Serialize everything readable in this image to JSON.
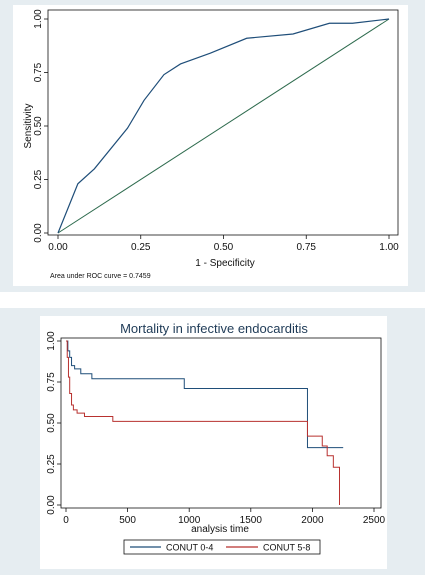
{
  "chart_data": [
    {
      "type": "line",
      "xlabel": "1 - Specificity",
      "ylabel": "Sensitivity",
      "xlim": [
        0,
        1
      ],
      "ylim": [
        0,
        1
      ],
      "xticks": [
        "0.00",
        "0.25",
        "0.50",
        "0.75",
        "1.00"
      ],
      "yticks": [
        "0.00",
        "0.25",
        "0.50",
        "0.75",
        "1.00"
      ],
      "grid": false,
      "note": "Area under ROC curve = 0.7459",
      "colors": {
        "roc": "#1f4e79",
        "reference": "#2e6b4e"
      },
      "series": [
        {
          "x": [
            0,
            0.06,
            0.11,
            0.21,
            0.26,
            0.32,
            0.37,
            0.46,
            0.57,
            0.71,
            0.82,
            0.89,
            1.0
          ],
          "y": [
            0,
            0.23,
            0.3,
            0.49,
            0.62,
            0.74,
            0.79,
            0.84,
            0.91,
            0.93,
            0.98,
            0.98,
            1.0
          ]
        },
        {
          "x": [
            0,
            1
          ],
          "y": [
            0,
            1
          ]
        }
      ]
    },
    {
      "type": "line",
      "title": "Mortality in infective endocarditis",
      "xlabel": "analysis time",
      "ylabel": "",
      "xlim": [
        0,
        2500
      ],
      "ylim": [
        0,
        1
      ],
      "xticks": [
        "0",
        "500",
        "1000",
        "1500",
        "2000",
        "2500"
      ],
      "yticks": [
        "0.00",
        "0.25",
        "0.50",
        "0.75",
        "1.00"
      ],
      "grid": false,
      "legend": "bottom",
      "colors": {
        "conut04": "#1f4e79",
        "conut58": "#b8312f"
      },
      "series": [
        {
          "name": "CONUT 0-4",
          "x": [
            0,
            15,
            15,
            30,
            30,
            45,
            45,
            70,
            70,
            120,
            120,
            210,
            210,
            960,
            960,
            1960,
            1960,
            2110,
            2110,
            2250
          ],
          "y": [
            1.0,
            1.0,
            0.94,
            0.94,
            0.9,
            0.9,
            0.85,
            0.85,
            0.83,
            0.83,
            0.8,
            0.8,
            0.77,
            0.77,
            0.71,
            0.71,
            0.35,
            0.35,
            0.35,
            0.35
          ]
        },
        {
          "name": "CONUT 5-8",
          "x": [
            0,
            10,
            10,
            20,
            20,
            30,
            30,
            45,
            45,
            60,
            60,
            90,
            90,
            150,
            150,
            380,
            380,
            1960,
            1960,
            2080,
            2080,
            2120,
            2120,
            2170,
            2170,
            2220,
            2220
          ],
          "y": [
            1.0,
            1.0,
            0.9,
            0.9,
            0.78,
            0.78,
            0.68,
            0.68,
            0.61,
            0.61,
            0.58,
            0.58,
            0.56,
            0.56,
            0.54,
            0.54,
            0.51,
            0.51,
            0.42,
            0.42,
            0.36,
            0.36,
            0.3,
            0.3,
            0.23,
            0.23,
            0.0
          ]
        }
      ]
    }
  ]
}
